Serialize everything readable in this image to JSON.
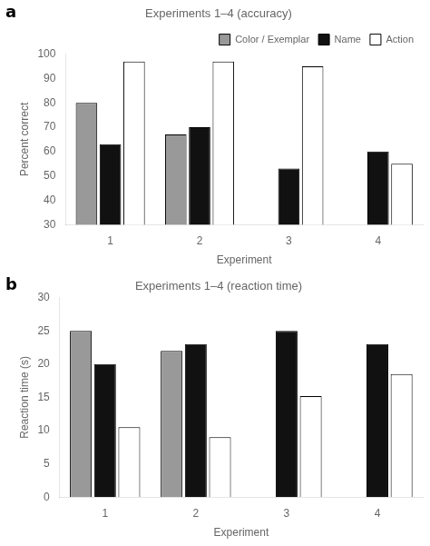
{
  "chart_data": [
    {
      "type": "bar",
      "annotation": "a",
      "title": "Experiments 1–4 (accuracy)",
      "xlabel": "Experiment",
      "ylabel": "Percent correct",
      "categories": [
        "1",
        "2",
        "3",
        "4"
      ],
      "series": [
        {
          "name": "Color / Exemplar",
          "color": "#999999",
          "values": [
            80,
            67,
            null,
            null
          ]
        },
        {
          "name": "Name",
          "color": "#111111",
          "values": [
            63,
            70,
            53,
            60
          ]
        },
        {
          "name": "Action",
          "color": "#ffffff",
          "values": [
            97,
            97,
            95,
            55
          ]
        }
      ],
      "ylim": [
        30,
        100
      ],
      "yticks": [
        30,
        40,
        50,
        60,
        70,
        80,
        90,
        100
      ],
      "grid": false,
      "legend": "upper right"
    },
    {
      "type": "bar",
      "annotation": "b",
      "title": "Experiments 1–4 (reaction time)",
      "xlabel": "Experiment",
      "ylabel": "Reaction time (s)",
      "categories": [
        "1",
        "2",
        "3",
        "4"
      ],
      "series": [
        {
          "name": "Color / Exemplar",
          "color": "#999999",
          "values": [
            25,
            22,
            null,
            null
          ]
        },
        {
          "name": "Name",
          "color": "#111111",
          "values": [
            20,
            23,
            25,
            23
          ]
        },
        {
          "name": "Action",
          "color": "#ffffff",
          "values": [
            10.5,
            9,
            15.2,
            18.5
          ]
        }
      ],
      "ylim": [
        0,
        30
      ],
      "yticks": [
        0,
        5,
        10,
        15,
        20,
        25,
        30
      ],
      "grid": false
    }
  ]
}
